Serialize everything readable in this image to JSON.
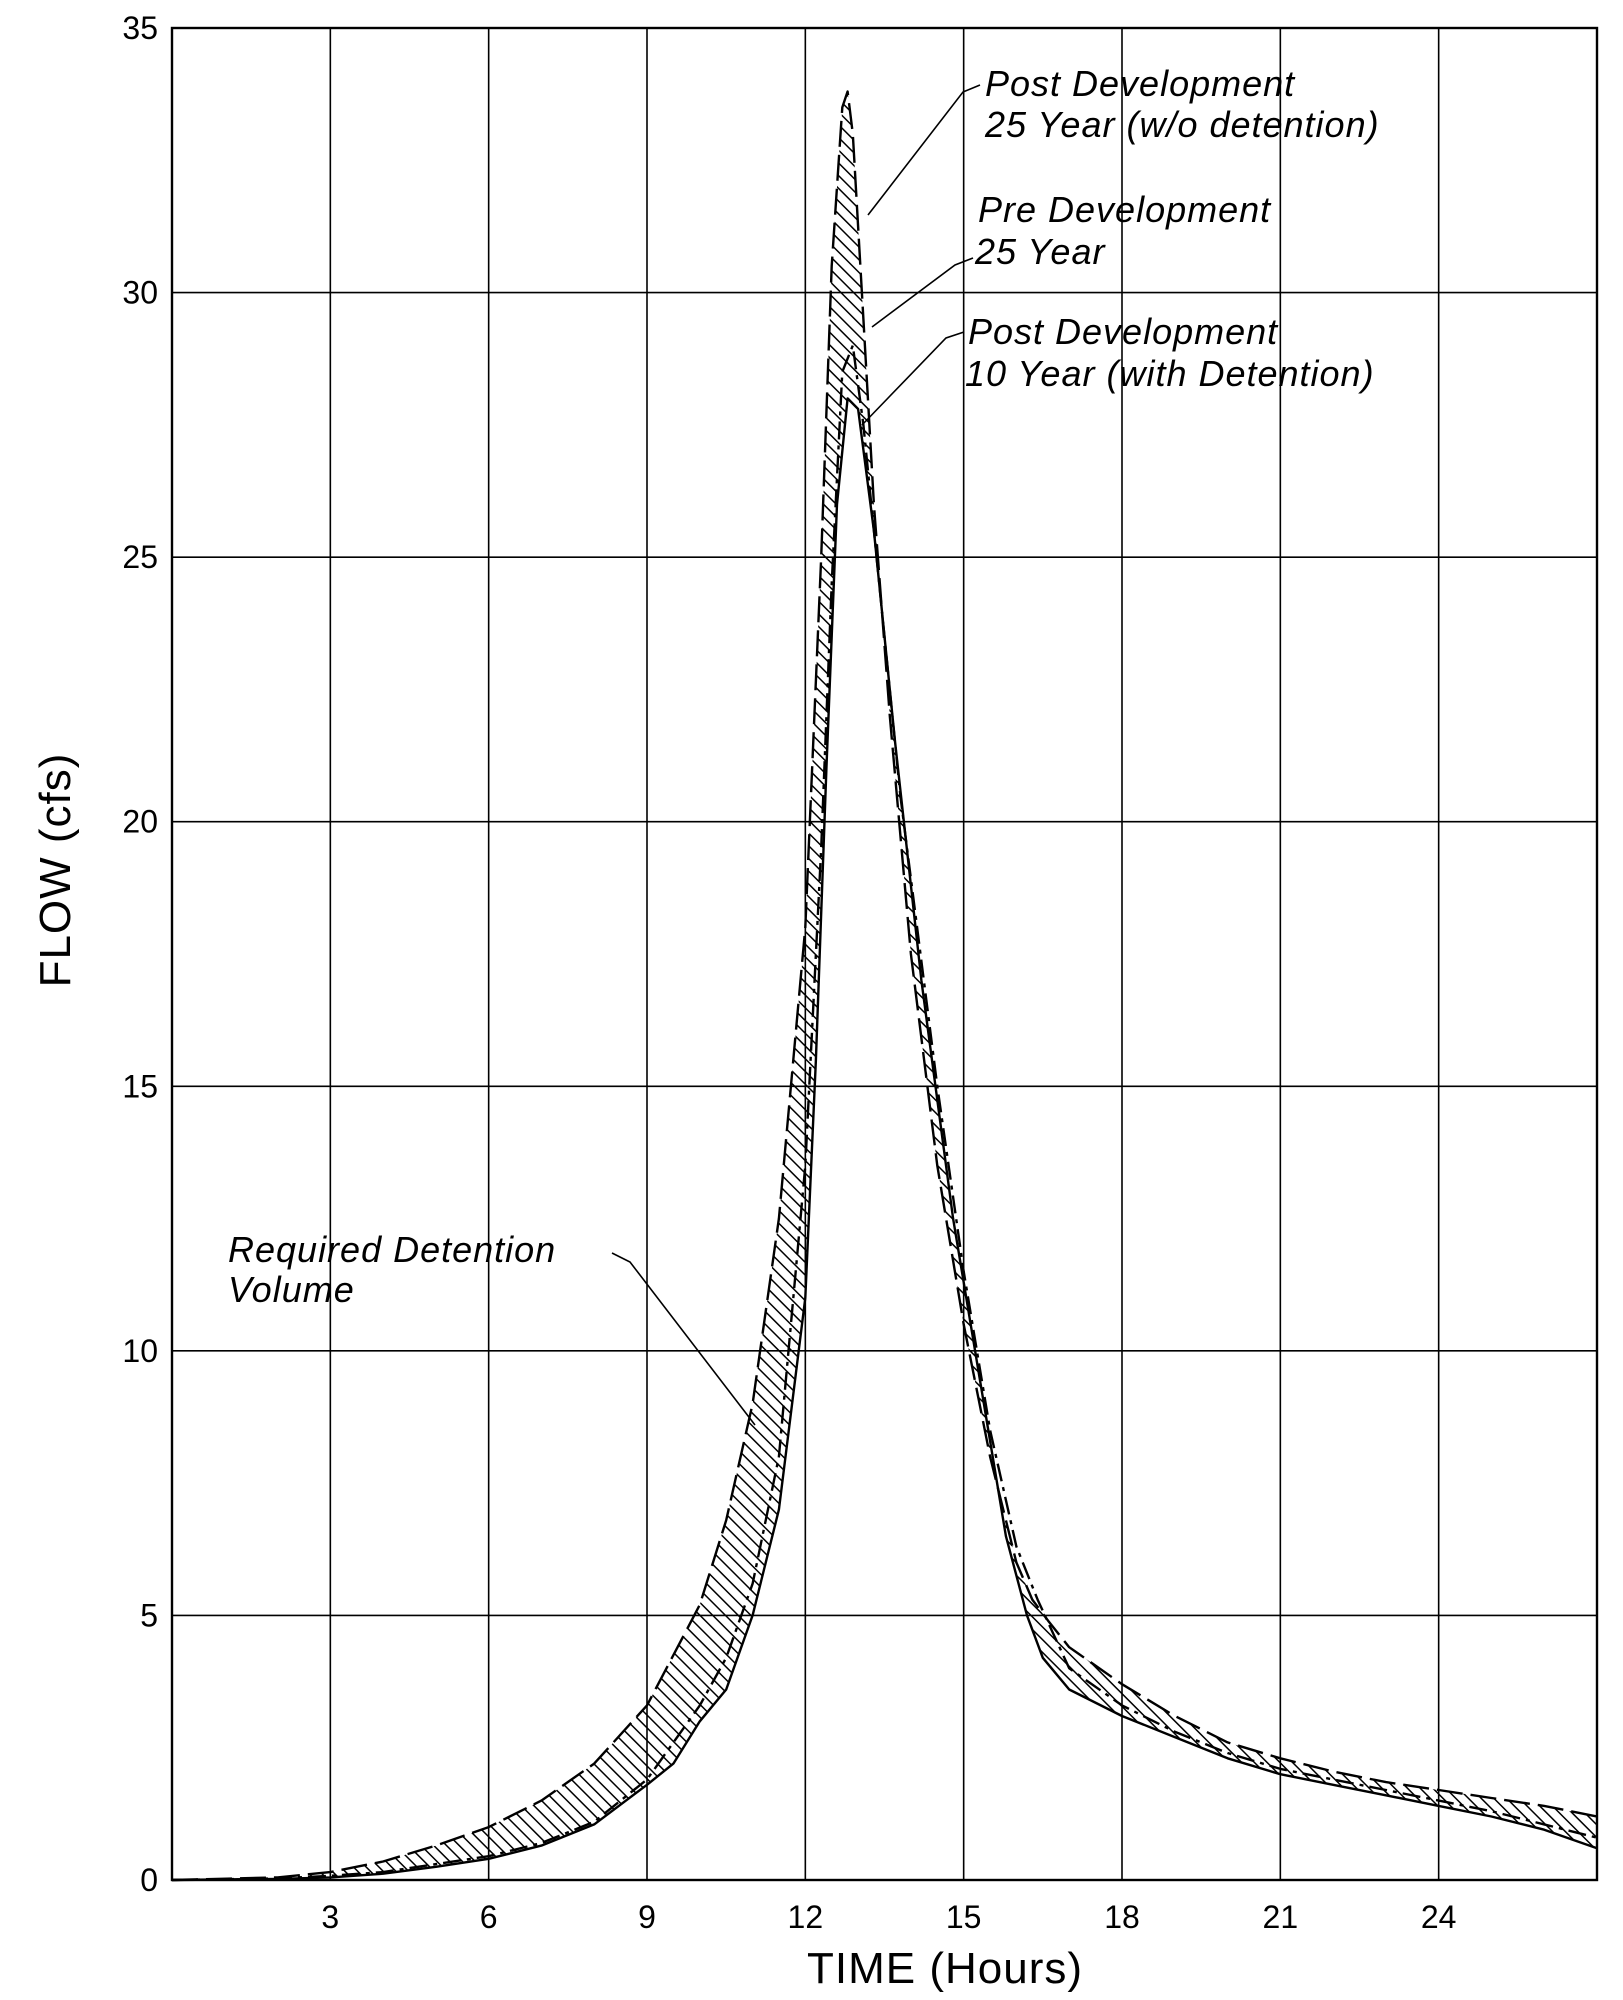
{
  "chart_data": {
    "type": "line",
    "xlabel": "TIME (Hours)",
    "ylabel": "FLOW (cfs)",
    "xlim": [
      0,
      27
    ],
    "ylim": [
      0,
      35
    ],
    "x_ticks": [
      3,
      6,
      9,
      12,
      15,
      18,
      21,
      24
    ],
    "y_ticks": [
      0,
      5,
      10,
      15,
      20,
      25,
      30,
      35
    ],
    "grid": true,
    "series": [
      {
        "name": "Post Development 25 Year (w/o detention)",
        "x": [
          0,
          2,
          3,
          4,
          5,
          6,
          7,
          8,
          9,
          10,
          10.5,
          11,
          11.5,
          12,
          12.3,
          12.5,
          12.7,
          12.8,
          12.9,
          13.1,
          13.3,
          13.6,
          14,
          14.5,
          15,
          15.5,
          16,
          16.3,
          16.6,
          17,
          18,
          19,
          20,
          21,
          22,
          23,
          24,
          25,
          26,
          27
        ],
        "y": [
          0,
          0.05,
          0.15,
          0.35,
          0.65,
          1.0,
          1.5,
          2.2,
          3.3,
          5.2,
          6.8,
          9.0,
          12.5,
          18.0,
          25.0,
          30.5,
          33.5,
          33.8,
          33.0,
          29.5,
          26.0,
          22.0,
          17.5,
          13.5,
          10.5,
          8.0,
          6.0,
          5.3,
          4.9,
          4.4,
          3.7,
          3.1,
          2.6,
          2.3,
          2.05,
          1.85,
          1.7,
          1.55,
          1.4,
          1.2
        ]
      },
      {
        "name": "Pre Development 25 Year",
        "x": [
          0,
          2,
          3,
          4,
          5,
          6,
          7,
          8,
          9,
          10,
          10.5,
          11,
          11.5,
          12,
          12.3,
          12.5,
          12.7,
          12.9,
          13.1,
          13.4,
          13.8,
          14.5,
          15,
          15.5,
          16,
          16.4,
          17,
          18,
          19,
          20,
          21,
          22,
          23,
          24,
          25,
          26,
          27
        ],
        "y": [
          0,
          0.03,
          0.08,
          0.15,
          0.3,
          0.45,
          0.7,
          1.1,
          1.9,
          3.3,
          4.2,
          5.6,
          8.0,
          13.5,
          19.5,
          24.5,
          28.5,
          29.0,
          27.5,
          24.5,
          20.5,
          15.0,
          11.5,
          8.5,
          6.3,
          5.3,
          4.0,
          3.3,
          2.8,
          2.4,
          2.1,
          1.9,
          1.7,
          1.5,
          1.3,
          1.05,
          0.8
        ]
      },
      {
        "name": "Post Development 10 Year (with Detention)",
        "x": [
          0,
          2,
          3,
          4,
          5,
          6,
          7,
          8,
          9,
          9.5,
          10,
          10.5,
          11,
          11.5,
          12,
          12.2,
          12.4,
          12.6,
          12.8,
          13.0,
          13.3,
          13.7,
          14.2,
          14.8,
          15.3,
          15.8,
          16.2,
          16.5,
          17,
          18,
          19,
          20,
          21,
          22,
          23,
          24,
          25,
          26,
          27
        ],
        "y": [
          0,
          0.02,
          0.05,
          0.12,
          0.25,
          0.4,
          0.65,
          1.05,
          1.8,
          2.2,
          3.0,
          3.6,
          5.0,
          7.0,
          11.0,
          15.5,
          21.0,
          26.0,
          28.0,
          27.8,
          25.5,
          21.5,
          17.0,
          12.5,
          9.5,
          6.5,
          5.0,
          4.2,
          3.6,
          3.1,
          2.7,
          2.3,
          2.0,
          1.8,
          1.6,
          1.4,
          1.2,
          0.95,
          0.6
        ]
      }
    ],
    "annotations": [
      {
        "lines": [
          "Post Development",
          "25 Year (w/o detention)"
        ]
      },
      {
        "lines": [
          "Pre Development",
          "25 Year"
        ]
      },
      {
        "lines": [
          "Post Development",
          "10 Year (with Detention)"
        ]
      },
      {
        "lines": [
          "Required Detention",
          "Volume"
        ]
      }
    ]
  }
}
